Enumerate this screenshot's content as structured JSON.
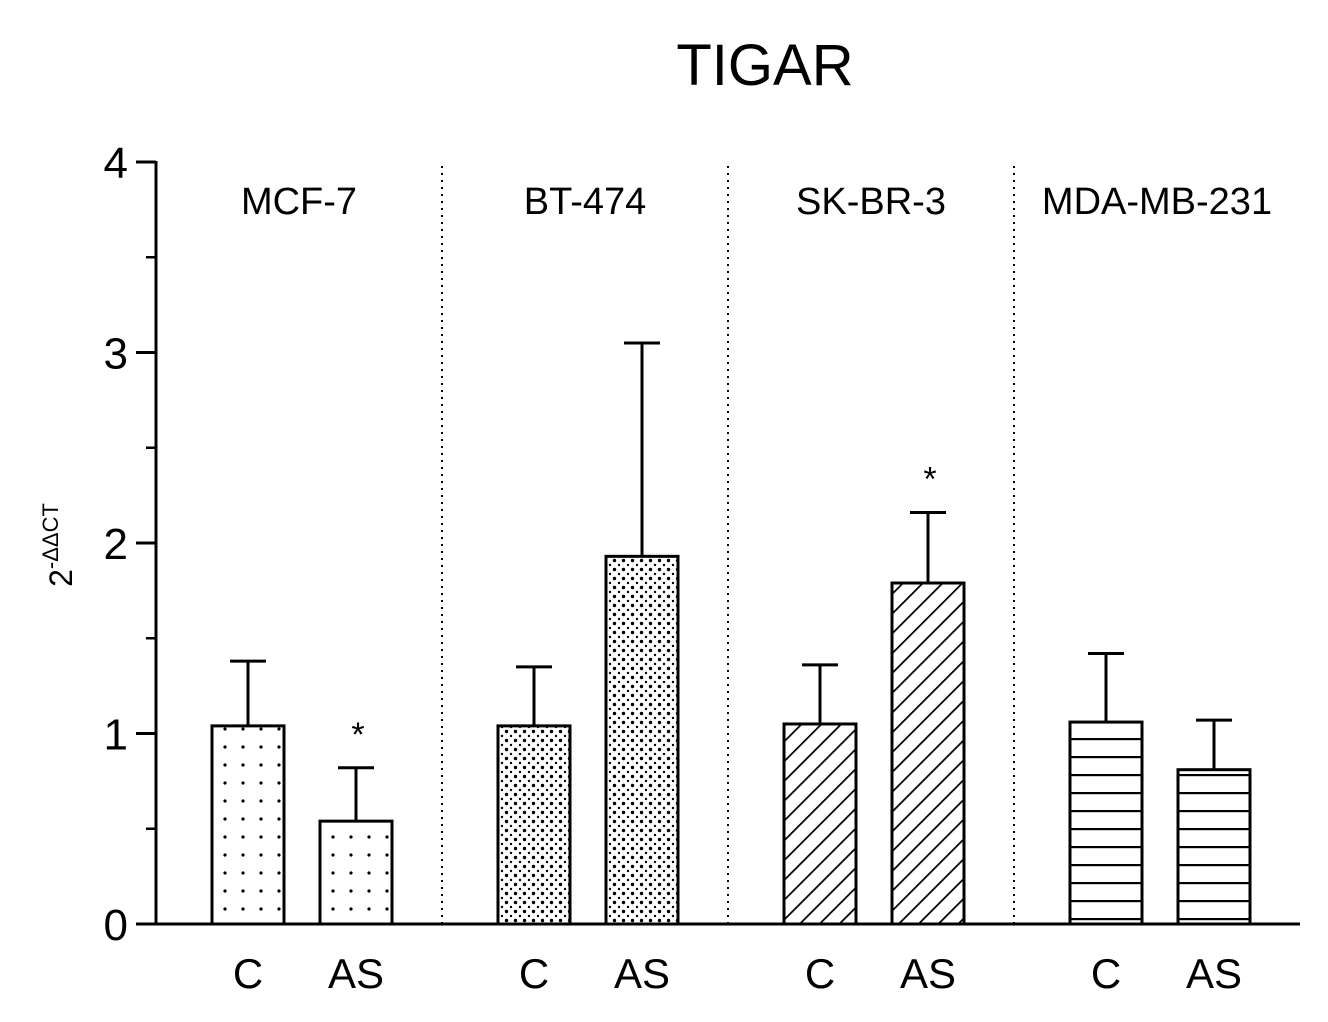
{
  "chart_data": {
    "type": "bar",
    "title": "TIGAR",
    "ylabel": "2",
    "ylabel_superscript": "-ΔΔCT",
    "xlabel": "",
    "ylim": [
      0,
      4
    ],
    "yticks": [
      "0",
      "1",
      "2",
      "3",
      "4"
    ],
    "groups": [
      {
        "name": "MCF-7",
        "pattern": "dots",
        "bars": [
          {
            "label": "C",
            "value": 1.04,
            "error": 0.34,
            "significant": false
          },
          {
            "label": "AS",
            "value": 0.54,
            "error": 0.28,
            "significant": true
          }
        ]
      },
      {
        "name": "BT-474",
        "pattern": "dense-dots",
        "bars": [
          {
            "label": "C",
            "value": 1.04,
            "error": 0.31,
            "significant": false
          },
          {
            "label": "AS",
            "value": 1.93,
            "error": 1.12,
            "significant": false
          }
        ]
      },
      {
        "name": "SK-BR-3",
        "pattern": "diagonal-lines",
        "bars": [
          {
            "label": "C",
            "value": 1.05,
            "error": 0.31,
            "significant": false
          },
          {
            "label": "AS",
            "value": 1.79,
            "error": 0.37,
            "significant": true
          }
        ]
      },
      {
        "name": "MDA-MB-231",
        "pattern": "horizontal-lines",
        "bars": [
          {
            "label": "C",
            "value": 1.06,
            "error": 0.36,
            "significant": false
          },
          {
            "label": "AS",
            "value": 0.81,
            "error": 0.26,
            "significant": false
          }
        ]
      }
    ],
    "significance_marker": "*"
  }
}
